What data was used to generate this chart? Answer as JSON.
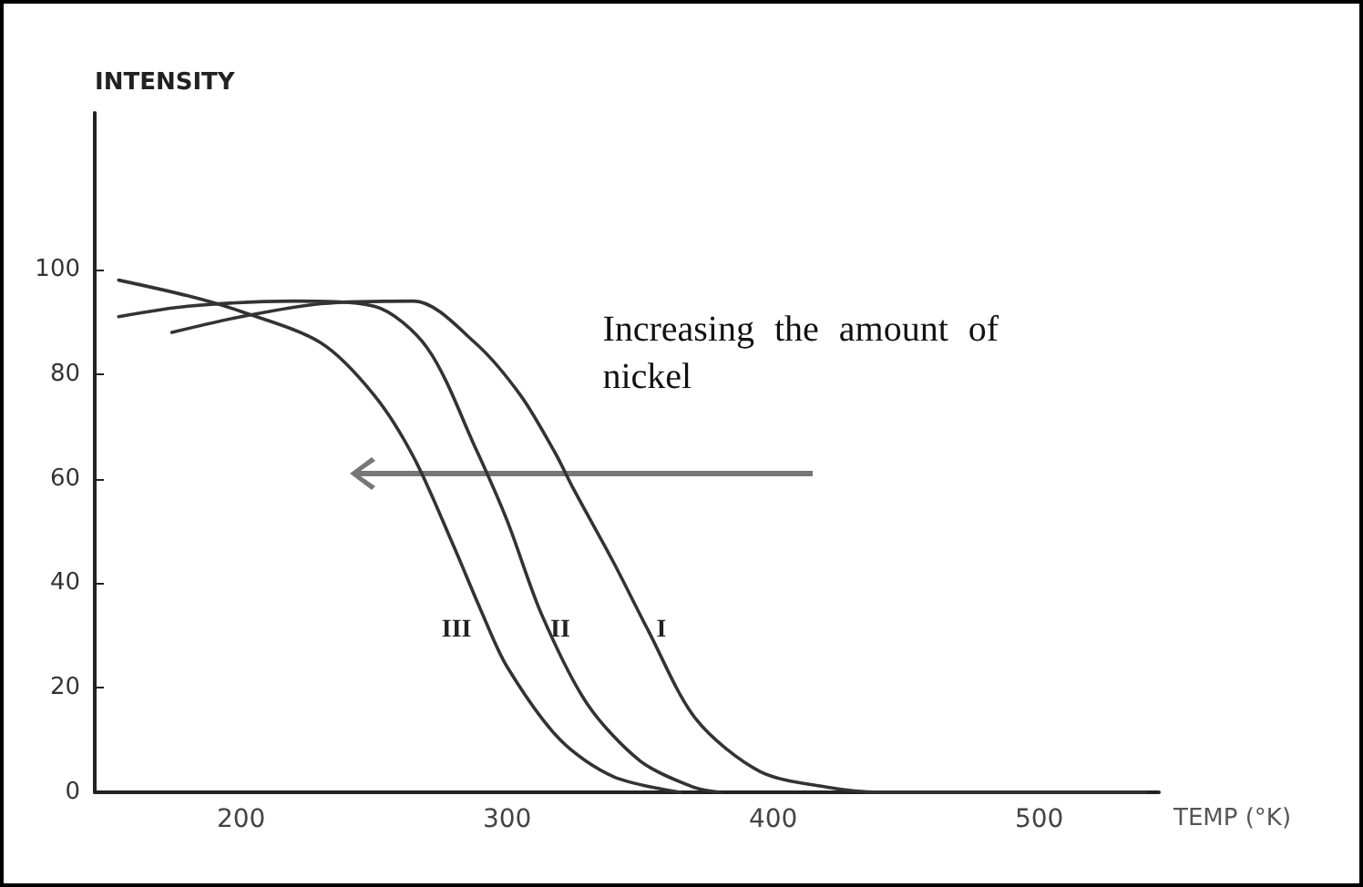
{
  "chart_data": {
    "type": "line",
    "xlabel": "TEMP (°K)",
    "ylabel": "INTENSITY",
    "xlim": [
      145,
      545
    ],
    "xticks": [
      200,
      300,
      400,
      500
    ],
    "ylim": [
      0,
      130
    ],
    "yticks": [
      0,
      20,
      40,
      60,
      80,
      100
    ],
    "grid": false,
    "marker": "none",
    "line_style": "solid",
    "series": [
      {
        "color": "#333333",
        "x": [
          174,
          200,
          230,
          265,
          288,
          305,
          318,
          325,
          340,
          353,
          371,
          395,
          420,
          440,
          540
        ],
        "values": [
          88,
          91,
          93.5,
          94,
          86,
          76,
          65,
          58,
          44,
          31,
          14,
          4,
          1,
          0,
          0
        ]
      },
      {
        "color": "#333333",
        "x": [
          154,
          180,
          220,
          250,
          270,
          288,
          300,
          313,
          330,
          350,
          370,
          380
        ],
        "values": [
          91,
          93,
          94,
          93,
          85,
          66,
          52,
          34,
          17,
          6,
          1,
          0
        ]
      },
      {
        "color": "#333333",
        "x": [
          154,
          180,
          200,
          230,
          250,
          265,
          280,
          290,
          300,
          320,
          340,
          365
        ],
        "values": [
          98,
          95,
          92,
          86,
          76,
          64,
          47,
          35,
          24,
          10,
          3,
          0
        ]
      }
    ],
    "annotations": [
      {
        "text": "I",
        "x": 358,
        "y": 31
      },
      {
        "text": "II",
        "x": 320,
        "y": 31
      },
      {
        "text": "III",
        "x": 281,
        "y": 31
      },
      "Increasing the amount of nickel"
    ]
  }
}
